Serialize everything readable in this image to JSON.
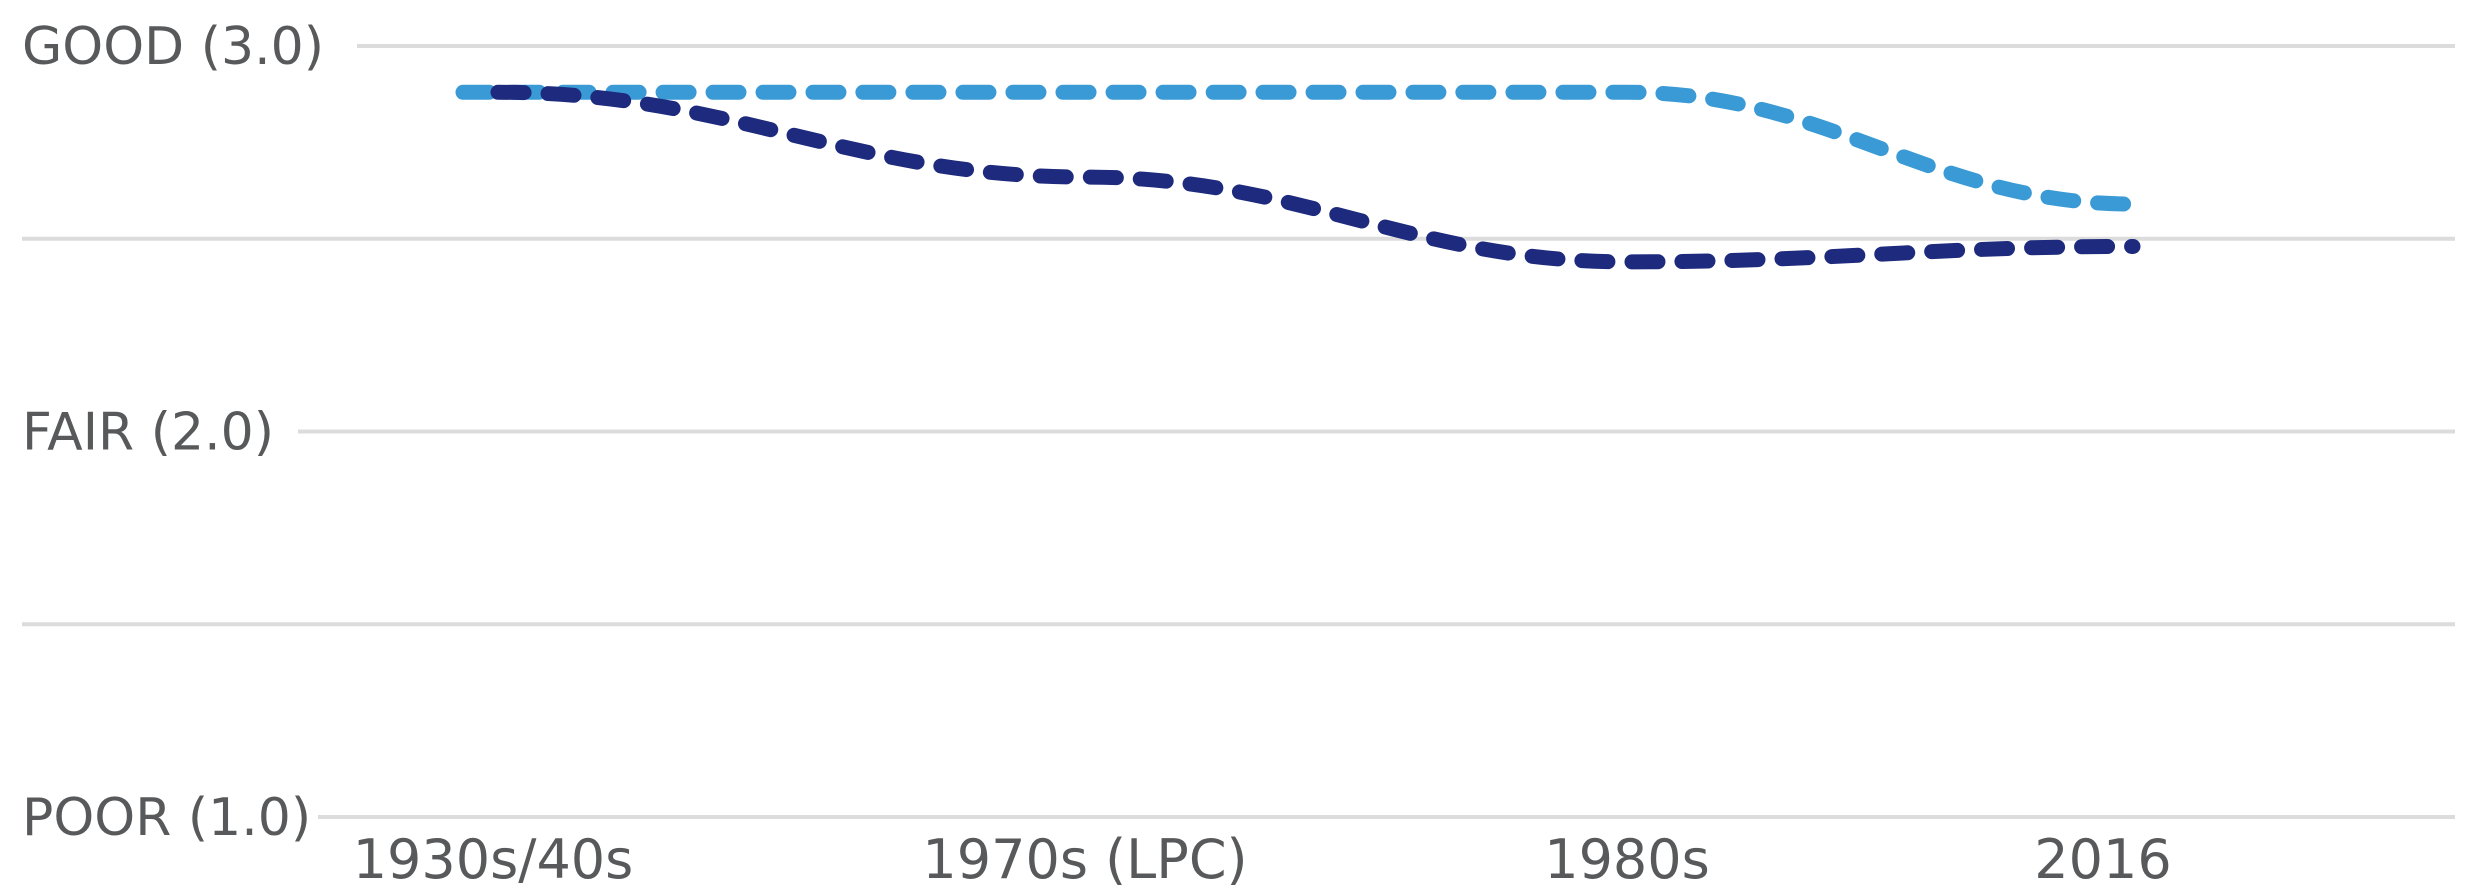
{
  "chart_data": {
    "type": "line",
    "categories": [
      "1930s/40s",
      "1970s (LPC)",
      "1980s",
      "2016"
    ],
    "y_ticks": [
      {
        "value": 3.0,
        "label": "GOOD (3.0)"
      },
      {
        "value": 2.5,
        "label": ""
      },
      {
        "value": 2.0,
        "label": "FAIR (2.0)"
      },
      {
        "value": 1.5,
        "label": ""
      },
      {
        "value": 1.0,
        "label": "POOR (1.0)"
      }
    ],
    "ylim": [
      1.0,
      3.0
    ],
    "grid": true,
    "legend": "none",
    "series": [
      {
        "color": "#3a9ad6",
        "values": [
          2.88,
          2.88,
          2.88,
          2.59
        ]
      },
      {
        "color": "#1d2a7d",
        "values": [
          2.88,
          2.66,
          2.44,
          2.48
        ]
      }
    ]
  }
}
